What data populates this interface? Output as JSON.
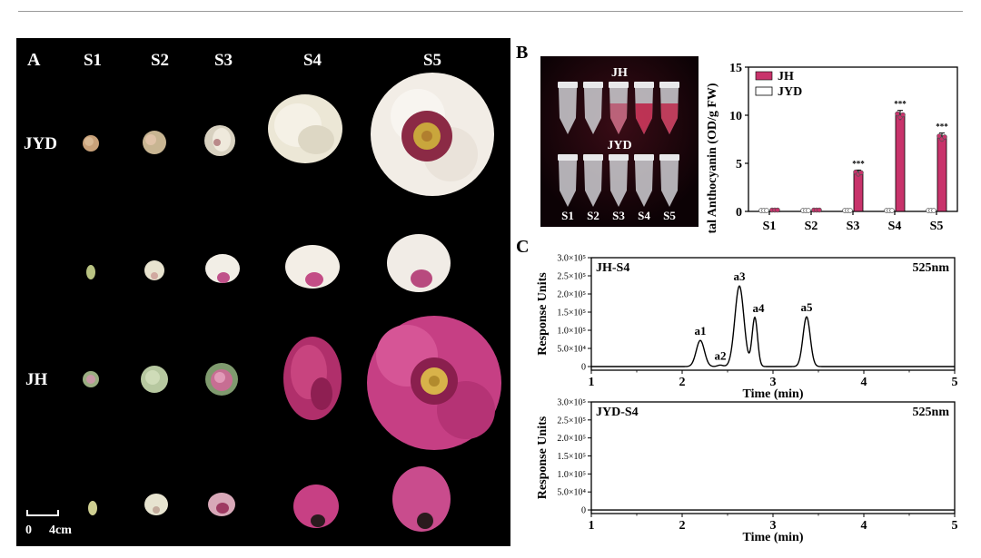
{
  "panel_a": {
    "label": "A",
    "stages": [
      "S1",
      "S2",
      "S3",
      "S4",
      "S5"
    ],
    "rows": [
      "JYD",
      "JH"
    ],
    "scale_bar": {
      "start": "0",
      "end": "4cm"
    }
  },
  "panel_b": {
    "label": "B",
    "photo": {
      "top_label": "JH",
      "bottom_label": "JYD",
      "tube_labels": [
        "S1",
        "S2",
        "S3",
        "S4",
        "S5"
      ]
    }
  },
  "panel_c": {
    "label": "C"
  },
  "colors": {
    "jh": "#c8336b",
    "jyd": "#ffffff",
    "background": "#000000"
  },
  "chart_data": [
    {
      "type": "bar",
      "ylabel": "Total Anthocyanin (OD/g FW)",
      "categories": [
        "S1",
        "S2",
        "S3",
        "S4",
        "S5"
      ],
      "ylim": [
        0,
        15
      ],
      "yticks": [
        "0",
        "5",
        "10",
        "15"
      ],
      "series": [
        {
          "name": "JH",
          "values": [
            0.1,
            0.12,
            4.0,
            10.0,
            7.7
          ],
          "error": [
            0.05,
            0.05,
            0.3,
            0.5,
            0.45
          ]
        },
        {
          "name": "JYD",
          "values": [
            0,
            0,
            0,
            0,
            0
          ],
          "error": [
            0,
            0,
            0,
            0,
            0
          ]
        }
      ],
      "annotations": [
        "***",
        "***",
        "***"
      ],
      "legend": "top-left"
    },
    {
      "type": "line",
      "title": "JH-S4",
      "wavelength": "525nm",
      "xlabel": "Time (min)",
      "ylabel": "Response Units",
      "xlim": [
        1,
        5
      ],
      "xticks": [
        "1",
        "2",
        "3",
        "4",
        "5"
      ],
      "ylim": [
        -10000,
        300000
      ],
      "yticks": [
        "0",
        "5.0×10⁴",
        "1.0×10⁵",
        "1.5×10⁵",
        "2.0×10⁵",
        "2.5×10⁵",
        "3.0×10⁵"
      ],
      "peaks": [
        {
          "name": "a1",
          "time": 2.2,
          "height": 72000,
          "width": 0.045
        },
        {
          "name": "a2",
          "time": 2.42,
          "height": 4000,
          "width": 0.03
        },
        {
          "name": "a3",
          "time": 2.63,
          "height": 222000,
          "width": 0.05
        },
        {
          "name": "a4",
          "time": 2.8,
          "height": 135000,
          "width": 0.03
        },
        {
          "name": "a5",
          "time": 3.37,
          "height": 137000,
          "width": 0.04
        }
      ]
    },
    {
      "type": "line",
      "title": "JYD-S4",
      "wavelength": "525nm",
      "xlabel": "Time (min)",
      "ylabel": "Response Units",
      "xlim": [
        1,
        5
      ],
      "xticks": [
        "1",
        "2",
        "3",
        "4",
        "5"
      ],
      "ylim": [
        -10000,
        300000
      ],
      "yticks": [
        "0",
        "5.0×10⁴",
        "1.0×10⁵",
        "1.5×10⁵",
        "2.0×10⁵",
        "2.5×10⁵",
        "3.0×10⁵"
      ],
      "peaks": []
    }
  ]
}
